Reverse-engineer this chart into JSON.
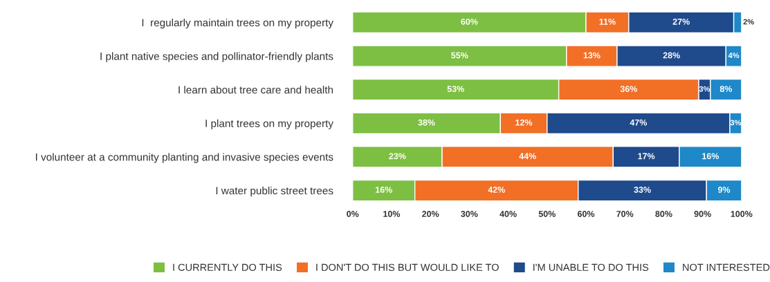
{
  "chart_data": {
    "type": "bar",
    "orientation": "horizontal",
    "stacked": true,
    "categories": [
      "I  regularly maintain trees on my property",
      "I plant native species and pollinator-friendly plants",
      "I learn about tree care and health",
      "I plant trees on my property",
      "I volunteer at a community planting and invasive species events",
      "I water public street trees"
    ],
    "series": [
      {
        "name": "I CURRENTLY DO THIS",
        "color": "#7dbf42",
        "values": [
          60,
          55,
          53,
          38,
          23,
          16
        ],
        "value_labels": [
          "60%",
          "55%",
          "53%",
          "38%",
          "23%",
          "16%"
        ]
      },
      {
        "name": "I DON'T DO THIS BUT WOULD LIKE TO",
        "color": "#f26f26",
        "values": [
          11,
          13,
          36,
          12,
          44,
          42
        ],
        "value_labels": [
          "11%",
          "13%",
          "36%",
          "12%",
          "44%",
          "42%"
        ]
      },
      {
        "name": "I'M UNABLE TO DO THIS",
        "color": "#1f4a8c",
        "values": [
          27,
          28,
          3,
          47,
          17,
          33
        ],
        "value_labels": [
          "27%",
          "28%",
          "3%",
          "47%",
          "17%",
          "33%"
        ]
      },
      {
        "name": "NOT INTERESTED",
        "color": "#1e88c8",
        "values": [
          2,
          4,
          8,
          3,
          16,
          9
        ],
        "value_labels": [
          "2%",
          "4%",
          "8%",
          "3%",
          "16%",
          "9%"
        ]
      }
    ],
    "xlim": [
      0,
      100
    ],
    "xticks": [
      {
        "value": 0,
        "label": "0%"
      },
      {
        "value": 10,
        "label": "10%"
      },
      {
        "value": 20,
        "label": "20%"
      },
      {
        "value": 30,
        "label": "30%"
      },
      {
        "value": 40,
        "label": "40%"
      },
      {
        "value": 50,
        "label": "50%"
      },
      {
        "value": 60,
        "label": "60%"
      },
      {
        "value": 70,
        "label": "70%"
      },
      {
        "value": 80,
        "label": "80%"
      },
      {
        "value": 90,
        "label": "90%"
      },
      {
        "value": 100,
        "label": "100%"
      }
    ],
    "grid": false,
    "legend": "bottom"
  }
}
